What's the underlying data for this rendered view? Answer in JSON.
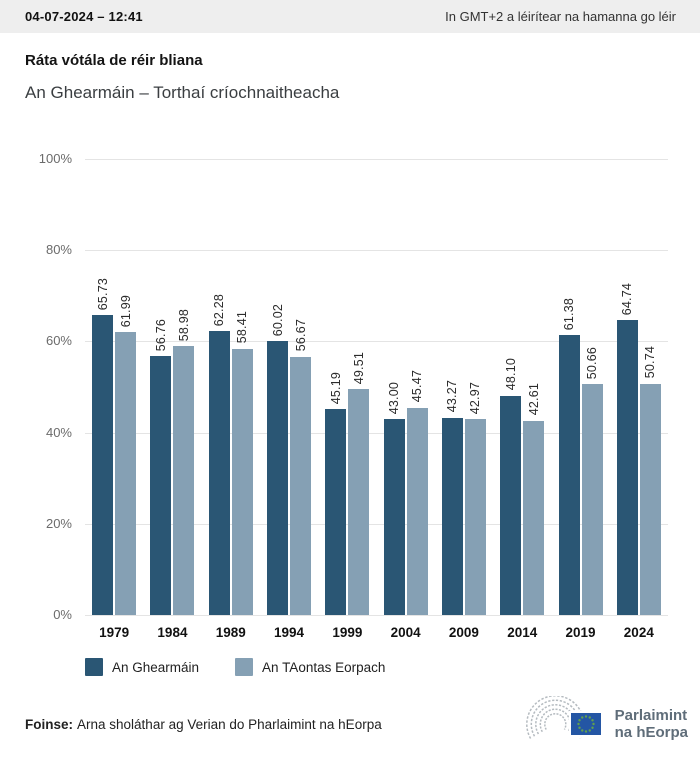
{
  "topbar": {
    "datetime": "04-07-2024 – 12:41",
    "timezone_note": "In GMT+2 a léirítear na hamanna go léir"
  },
  "header": {
    "title": "Ráta vótála de réir bliana",
    "subtitle": "An Ghearmáin – Torthaí críochnaitheacha"
  },
  "chart_data": {
    "type": "bar",
    "title": "Ráta vótála de réir bliana",
    "subtitle": "An Ghearmáin – Torthaí críochnaitheacha",
    "categories": [
      "1979",
      "1984",
      "1989",
      "1994",
      "1999",
      "2004",
      "2009",
      "2014",
      "2019",
      "2024"
    ],
    "series": [
      {
        "name": "An Ghearmáin",
        "color": "#2a5674",
        "values": [
          65.73,
          56.76,
          62.28,
          60.02,
          45.19,
          43.0,
          43.27,
          48.1,
          61.38,
          64.74
        ]
      },
      {
        "name": "An TAontas Eorpach",
        "color": "#85a0b4",
        "values": [
          61.99,
          58.98,
          58.41,
          56.67,
          49.51,
          45.47,
          42.97,
          42.61,
          50.66,
          50.74
        ]
      }
    ],
    "xlabel": "",
    "ylabel": "",
    "ylim": [
      0,
      100
    ],
    "y_ticks": [
      "100%",
      "80%",
      "60%",
      "40%",
      "20%",
      "0%"
    ],
    "grid": true,
    "value_labels": "rotated-vertical, two decimals",
    "legend_position": "bottom-left"
  },
  "footer": {
    "source_label": "Foinse:",
    "source_text": "Arna sholáthar ag Verian do Pharlaimint na hEorpa",
    "logo_text_line1": "Parlaimint",
    "logo_text_line2": "na hEorpa"
  },
  "icons": {
    "logo": "ep-hemicycle-icon"
  },
  "colors": {
    "series_germany": "#2a5674",
    "series_eu": "#85a0b4",
    "topbar_bg": "#eeeeee",
    "gridline": "#e4e4e4",
    "axis_text": "#6b6b6b",
    "flag_blue": "#2456a4",
    "flag_stars": "#62a14e",
    "logo_arcs": "#b5bbc0",
    "logo_text": "#5f6d79"
  }
}
